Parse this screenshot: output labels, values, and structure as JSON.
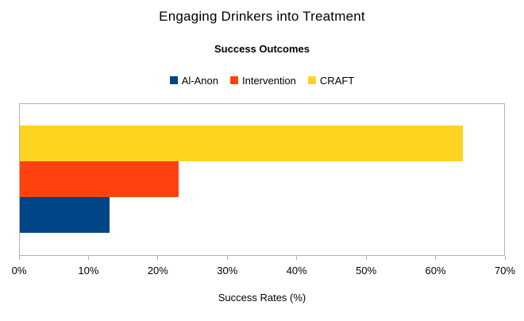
{
  "chart_data": {
    "type": "bar",
    "orientation": "horizontal",
    "title": "Engaging Drinkers into Treatment",
    "subtitle": "Success Outcomes",
    "xlabel": "Success Rates (%)",
    "ylabel": "",
    "categories": [
      "Success Outcomes"
    ],
    "series": [
      {
        "name": "Al-Anon",
        "values": [
          13
        ],
        "color": "#004586"
      },
      {
        "name": "Intervention",
        "values": [
          23
        ],
        "color": "#FF420E"
      },
      {
        "name": "CRAFT",
        "values": [
          64
        ],
        "color": "#FFD320"
      }
    ],
    "xlim": [
      0,
      70
    ],
    "xticks": [
      "0%",
      "10%",
      "20%",
      "30%",
      "40%",
      "50%",
      "60%",
      "70%"
    ],
    "grid": false,
    "legend_position": "top",
    "bar_order_top_to_bottom": [
      "CRAFT",
      "Intervention",
      "Al-Anon"
    ],
    "axis_color": "#b3b3b3",
    "background_color": "#ffffff",
    "text_color": "#000000"
  }
}
